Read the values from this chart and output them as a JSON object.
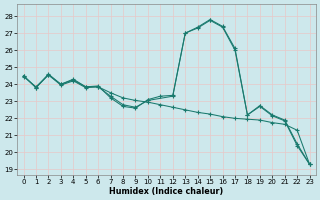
{
  "xlabel": "Humidex (Indice chaleur)",
  "bg_color": "#cde8ec",
  "grid_color": "#b8d4d8",
  "line_color": "#1a7a6e",
  "xlim": [
    -0.5,
    23.5
  ],
  "ylim": [
    18.7,
    28.7
  ],
  "yticks": [
    19,
    20,
    21,
    22,
    23,
    24,
    25,
    26,
    27,
    28
  ],
  "xticks": [
    0,
    1,
    2,
    3,
    4,
    5,
    6,
    7,
    8,
    9,
    10,
    11,
    12,
    13,
    14,
    15,
    16,
    17,
    18,
    19,
    20,
    21,
    22,
    23
  ],
  "curve1_x": [
    0,
    1,
    2,
    3,
    4,
    5,
    6,
    7,
    8,
    9,
    10,
    11,
    12,
    13,
    14,
    15,
    16,
    17,
    18,
    19,
    20,
    21,
    22,
    23
  ],
  "curve1_y": [
    24.5,
    23.8,
    24.6,
    24.0,
    24.3,
    23.85,
    23.9,
    23.2,
    22.7,
    22.6,
    23.1,
    23.3,
    23.35,
    27.0,
    27.35,
    27.8,
    27.4,
    26.1,
    22.2,
    22.75,
    22.2,
    21.9,
    20.5,
    19.3
  ],
  "curve2_x": [
    0,
    1,
    2,
    3,
    4,
    5,
    6,
    7,
    8,
    9,
    10,
    11,
    12,
    13,
    14,
    15,
    16,
    17,
    18,
    19,
    20,
    21,
    22,
    23
  ],
  "curve2_y": [
    24.5,
    23.8,
    24.55,
    24.0,
    24.25,
    23.85,
    23.85,
    23.5,
    23.2,
    23.05,
    22.95,
    22.8,
    22.65,
    22.5,
    22.35,
    22.25,
    22.1,
    22.0,
    21.95,
    21.9,
    21.75,
    21.65,
    21.3,
    19.3
  ],
  "curve3_x": [
    0,
    1,
    2,
    3,
    4,
    5,
    6,
    7,
    8,
    9,
    10,
    12,
    13,
    14,
    15,
    16,
    17,
    18,
    19,
    20,
    21,
    22,
    23
  ],
  "curve3_y": [
    24.45,
    23.85,
    24.55,
    23.95,
    24.2,
    23.8,
    23.85,
    23.3,
    22.8,
    22.65,
    23.05,
    23.3,
    27.0,
    27.3,
    27.75,
    27.35,
    26.0,
    22.2,
    22.7,
    22.15,
    21.85,
    20.4,
    19.3
  ]
}
